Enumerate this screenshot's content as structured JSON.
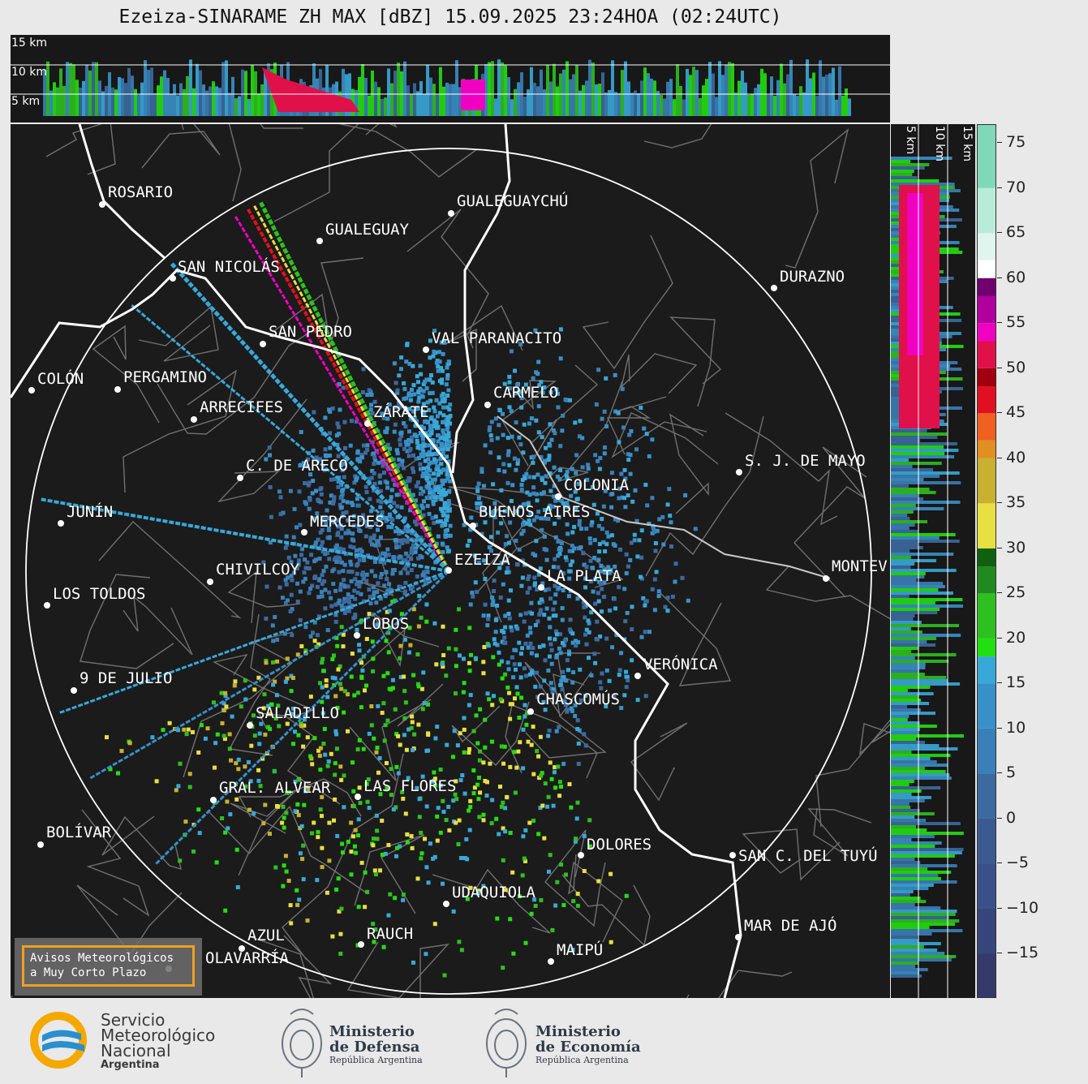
{
  "title": "Ezeiza-SINARAME ZH MAX [dBZ] 15.09.2025 23:24HOA (02:24UTC)",
  "top_panel": {
    "altitude_labels": [
      "15 km",
      "10 km",
      "5 km"
    ]
  },
  "right_panel": {
    "altitude_labels": [
      "5 km",
      "10 km",
      "15 km"
    ]
  },
  "colorbar": {
    "unit": "dBZ",
    "ticks": [
      "75",
      "70",
      "65",
      "60",
      "55",
      "50",
      "45",
      "40",
      "35",
      "30",
      "25",
      "20",
      "15",
      "10",
      "5",
      "0",
      "−5",
      "−10",
      "−15"
    ],
    "bands": [
      {
        "from": -20,
        "to": -15,
        "color": "#343a6a"
      },
      {
        "from": -15,
        "to": -10,
        "color": "#36457a"
      },
      {
        "from": -10,
        "to": -5,
        "color": "#3a5088"
      },
      {
        "from": -5,
        "to": 0,
        "color": "#3c5a92"
      },
      {
        "from": 0,
        "to": 5,
        "color": "#3c6aa0"
      },
      {
        "from": 5,
        "to": 10,
        "color": "#3a80b8"
      },
      {
        "from": 10,
        "to": 15,
        "color": "#3890c8"
      },
      {
        "from": 15,
        "to": 18,
        "color": "#38a8d8"
      },
      {
        "from": 18,
        "to": 20,
        "color": "#22e010"
      },
      {
        "from": 20,
        "to": 25,
        "color": "#2ec020"
      },
      {
        "from": 25,
        "to": 28,
        "color": "#208a20"
      },
      {
        "from": 28,
        "to": 30,
        "color": "#106010"
      },
      {
        "from": 30,
        "to": 35,
        "color": "#e8e040"
      },
      {
        "from": 35,
        "to": 40,
        "color": "#c8b030"
      },
      {
        "from": 40,
        "to": 42,
        "color": "#e09020"
      },
      {
        "from": 42,
        "to": 45,
        "color": "#f06020"
      },
      {
        "from": 45,
        "to": 48,
        "color": "#e01020"
      },
      {
        "from": 48,
        "to": 50,
        "color": "#a00010"
      },
      {
        "from": 50,
        "to": 53,
        "color": "#e0104a"
      },
      {
        "from": 53,
        "to": 55,
        "color": "#f000c0"
      },
      {
        "from": 55,
        "to": 58,
        "color": "#b000a0"
      },
      {
        "from": 58,
        "to": 60,
        "color": "#700070"
      },
      {
        "from": 60,
        "to": 62,
        "color": "#ffffff"
      },
      {
        "from": 62,
        "to": 65,
        "color": "#dff5ee"
      },
      {
        "from": 65,
        "to": 70,
        "color": "#b8ecd8"
      },
      {
        "from": 70,
        "to": 77,
        "color": "#7fd8b8"
      }
    ]
  },
  "cities": [
    {
      "name": "ROSARIO"
    },
    {
      "name": "GUALEGUAYCHÚ"
    },
    {
      "name": "GUALEGUAY"
    },
    {
      "name": "SAN NICOLÁS"
    },
    {
      "name": "DURAZNO"
    },
    {
      "name": "SAN PEDRO"
    },
    {
      "name": "VAL PARANACITO"
    },
    {
      "name": "COLÓN"
    },
    {
      "name": "PERGAMINO"
    },
    {
      "name": "CARMELO"
    },
    {
      "name": "ARRECIFES"
    },
    {
      "name": "ZÁRATE"
    },
    {
      "name": "C. DE ARECO"
    },
    {
      "name": "S. J. DE MAYO"
    },
    {
      "name": "COLONIA"
    },
    {
      "name": "JUNÍN"
    },
    {
      "name": "BUENOS AIRES"
    },
    {
      "name": "MERCEDES"
    },
    {
      "name": "EZEIZA"
    },
    {
      "name": "MONTEV"
    },
    {
      "name": "CHIVILCOY"
    },
    {
      "name": "LA PLATA"
    },
    {
      "name": "LOS TOLDOS"
    },
    {
      "name": "LOBOS"
    },
    {
      "name": "VERÓNICA"
    },
    {
      "name": "9 DE JULIO"
    },
    {
      "name": "CHASCOMÚS"
    },
    {
      "name": "SALADILLO"
    },
    {
      "name": "GRAL. ALVEAR"
    },
    {
      "name": "LAS FLORES"
    },
    {
      "name": "BOLÍVAR"
    },
    {
      "name": "DOLORES"
    },
    {
      "name": "SAN C. DEL TUYÚ"
    },
    {
      "name": "UDAQUIOLA"
    },
    {
      "name": "MAR DE AJÓ"
    },
    {
      "name": "AZUL"
    },
    {
      "name": "RAUCH"
    },
    {
      "name": "OLAVARRÍA"
    },
    {
      "name": "MAIPÚ"
    }
  ],
  "alert": {
    "line1": "Avisos Meteorológicos",
    "line2": "a Muy Corto Plazo"
  },
  "footer": {
    "smn": {
      "line1": "Servicio",
      "line2": "Meteorológico",
      "line3": "Nacional",
      "line4": "Argentina"
    },
    "defensa": {
      "line1": "Ministerio",
      "line2": "de Defensa",
      "line3": "República Argentina"
    },
    "economia": {
      "line1": "Ministerio",
      "line2": "de Economía",
      "line3": "República Argentina"
    }
  }
}
